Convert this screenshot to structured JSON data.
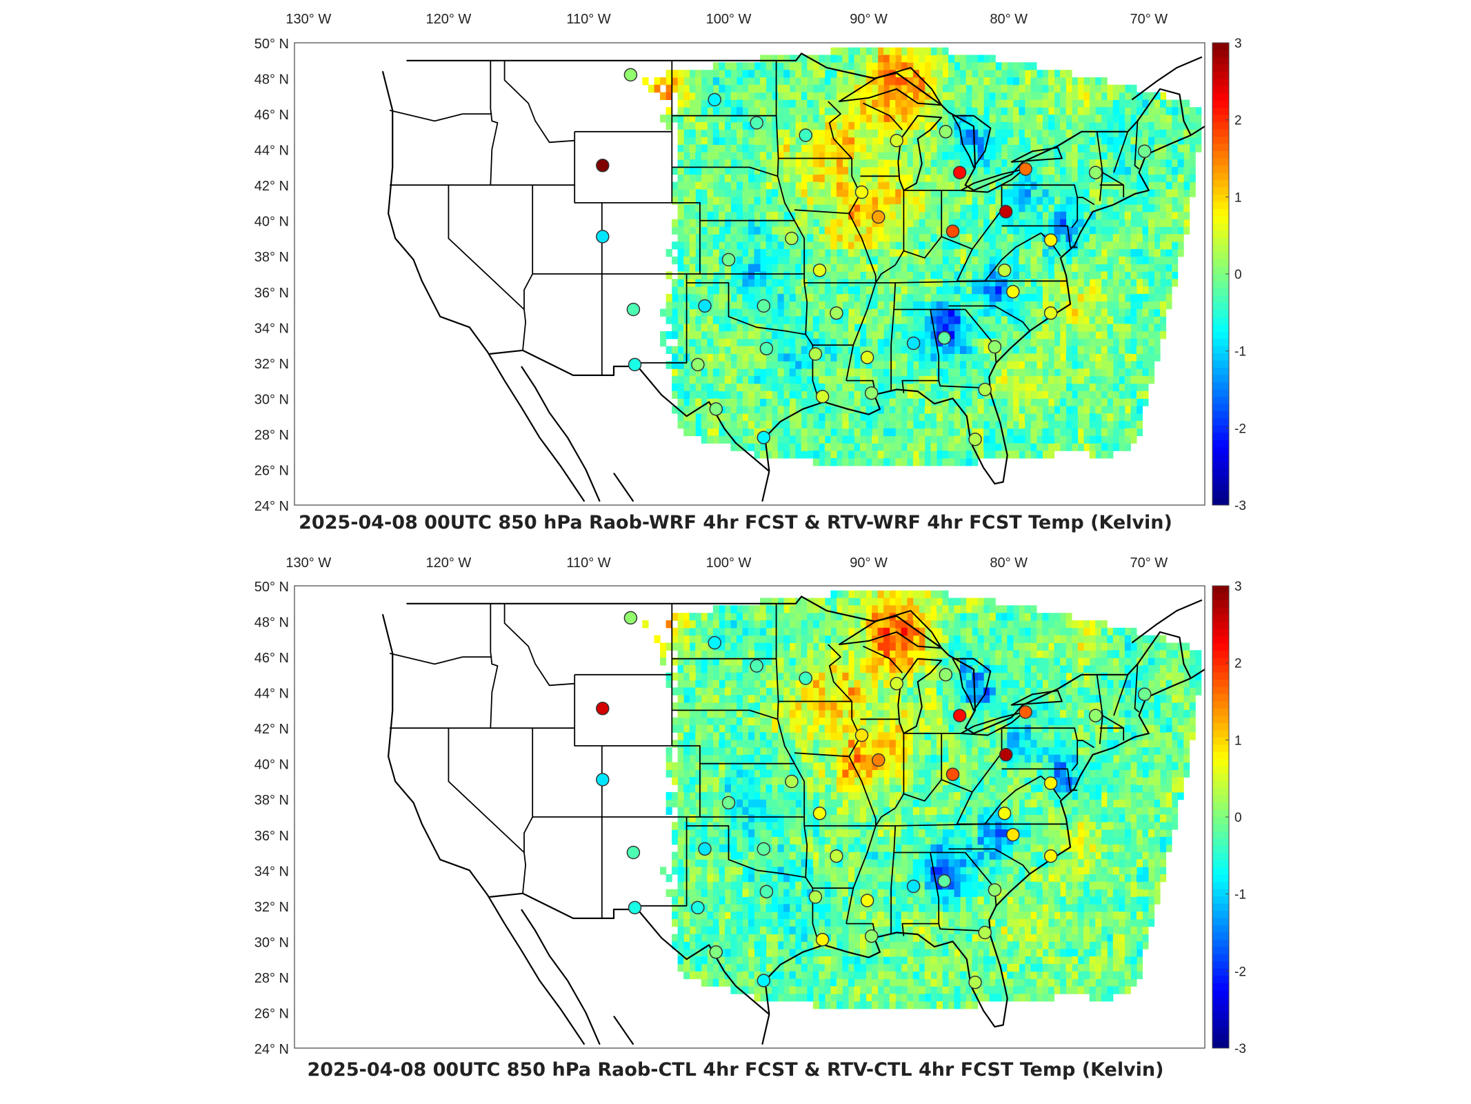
{
  "panels": [
    {
      "title": "2025-04-08 00UTC 850 hPa Raob-WRF 4hr FCST & RTV-WRF 4hr FCST Temp (Kelvin)",
      "stations_variant": "wrf"
    },
    {
      "title": "2025-04-08 00UTC 850 hPa Raob-CTL 4hr FCST & RTV-CTL 4hr FCST Temp (Kelvin)",
      "stations_variant": "ctl"
    }
  ],
  "map": {
    "lon_range": [
      -131,
      -66
    ],
    "lat_range": [
      24,
      50
    ],
    "lon_ticks": [
      {
        "value": -130,
        "label": "130° W"
      },
      {
        "value": -120,
        "label": "120° W"
      },
      {
        "value": -110,
        "label": "110° W"
      },
      {
        "value": -100,
        "label": "100° W"
      },
      {
        "value": -90,
        "label": "90° W"
      },
      {
        "value": -80,
        "label": "80° W"
      },
      {
        "value": -70,
        "label": "70° W"
      }
    ],
    "lat_ticks": [
      {
        "value": 50,
        "label": "50° N"
      },
      {
        "value": 48,
        "label": "48° N"
      },
      {
        "value": 46,
        "label": "46° N"
      },
      {
        "value": 44,
        "label": "44° N"
      },
      {
        "value": 42,
        "label": "42° N"
      },
      {
        "value": 40,
        "label": "40° N"
      },
      {
        "value": 38,
        "label": "38° N"
      },
      {
        "value": 36,
        "label": "36° N"
      },
      {
        "value": 34,
        "label": "34° N"
      },
      {
        "value": 32,
        "label": "32° N"
      },
      {
        "value": 30,
        "label": "30° N"
      },
      {
        "value": 28,
        "label": "28° N"
      },
      {
        "value": 26,
        "label": "26° N"
      },
      {
        "value": 24,
        "label": "24° N"
      }
    ]
  },
  "colorbar": {
    "min": -3,
    "max": 3,
    "ticks": [
      {
        "value": 3,
        "label": "3"
      },
      {
        "value": 2,
        "label": "2"
      },
      {
        "value": 1,
        "label": "1"
      },
      {
        "value": 0,
        "label": "0"
      },
      {
        "value": -1,
        "label": "-1"
      },
      {
        "value": -2,
        "label": "-2"
      },
      {
        "value": -3,
        "label": "-3"
      }
    ],
    "colormap": "jet"
  },
  "stations": [
    {
      "lon": -107.0,
      "lat": 48.2,
      "wrf": 0.1,
      "ctl": 0.1
    },
    {
      "lon": -101.0,
      "lat": 46.8,
      "wrf": -0.8,
      "ctl": -0.8
    },
    {
      "lon": -98.0,
      "lat": 45.5,
      "wrf": -0.3,
      "ctl": -0.3
    },
    {
      "lon": -94.5,
      "lat": 44.8,
      "wrf": -0.4,
      "ctl": -0.4
    },
    {
      "lon": -88.0,
      "lat": 44.5,
      "wrf": 0.5,
      "ctl": 0.5
    },
    {
      "lon": -84.5,
      "lat": 45.0,
      "wrf": 0.1,
      "ctl": 0.1
    },
    {
      "lon": -109.0,
      "lat": 43.1,
      "wrf": 3.0,
      "ctl": 2.5
    },
    {
      "lon": -83.5,
      "lat": 42.7,
      "wrf": 2.2,
      "ctl": 2.2
    },
    {
      "lon": -78.8,
      "lat": 42.9,
      "wrf": 1.6,
      "ctl": 1.7
    },
    {
      "lon": -73.8,
      "lat": 42.7,
      "wrf": 0.1,
      "ctl": 0.1
    },
    {
      "lon": -70.3,
      "lat": 43.9,
      "wrf": -0.1,
      "ctl": -0.1
    },
    {
      "lon": -90.5,
      "lat": 41.6,
      "wrf": 0.7,
      "ctl": 0.9
    },
    {
      "lon": -89.3,
      "lat": 40.2,
      "wrf": 1.3,
      "ctl": 1.5
    },
    {
      "lon": -84.0,
      "lat": 39.4,
      "wrf": 1.8,
      "ctl": 1.8
    },
    {
      "lon": -80.2,
      "lat": 40.5,
      "wrf": 2.6,
      "ctl": 2.7
    },
    {
      "lon": -77.0,
      "lat": 38.9,
      "wrf": 0.8,
      "ctl": 0.8
    },
    {
      "lon": -109.0,
      "lat": 39.1,
      "wrf": -0.9,
      "ctl": -0.9
    },
    {
      "lon": -95.5,
      "lat": 39.0,
      "wrf": 0.3,
      "ctl": 0.3
    },
    {
      "lon": -100.0,
      "lat": 37.8,
      "wrf": -0.1,
      "ctl": -0.1
    },
    {
      "lon": -93.5,
      "lat": 37.2,
      "wrf": 0.6,
      "ctl": 0.7
    },
    {
      "lon": -80.3,
      "lat": 37.2,
      "wrf": 0.4,
      "ctl": 0.7
    },
    {
      "lon": -79.7,
      "lat": 36.0,
      "wrf": 0.7,
      "ctl": 0.9
    },
    {
      "lon": -106.8,
      "lat": 35.0,
      "wrf": -0.3,
      "ctl": -0.3
    },
    {
      "lon": -101.7,
      "lat": 35.2,
      "wrf": -0.9,
      "ctl": -0.9
    },
    {
      "lon": -97.5,
      "lat": 35.2,
      "wrf": -0.2,
      "ctl": -0.2
    },
    {
      "lon": -92.3,
      "lat": 34.8,
      "wrf": 0.2,
      "ctl": 0.4
    },
    {
      "lon": -77.0,
      "lat": 34.8,
      "wrf": 0.6,
      "ctl": 0.8
    },
    {
      "lon": -97.3,
      "lat": 32.8,
      "wrf": -0.3,
      "ctl": -0.3
    },
    {
      "lon": -93.8,
      "lat": 32.5,
      "wrf": 0.3,
      "ctl": 0.3
    },
    {
      "lon": -90.1,
      "lat": 32.3,
      "wrf": 0.6,
      "ctl": 0.7
    },
    {
      "lon": -86.8,
      "lat": 33.1,
      "wrf": -0.9,
      "ctl": -0.9
    },
    {
      "lon": -84.6,
      "lat": 33.4,
      "wrf": -0.2,
      "ctl": -0.2
    },
    {
      "lon": -81.0,
      "lat": 32.9,
      "wrf": 0.1,
      "ctl": 0.1
    },
    {
      "lon": -106.7,
      "lat": 31.9,
      "wrf": -0.6,
      "ctl": -0.6
    },
    {
      "lon": -102.2,
      "lat": 31.9,
      "wrf": 0.1,
      "ctl": -0.6
    },
    {
      "lon": -93.3,
      "lat": 30.1,
      "wrf": 0.5,
      "ctl": 0.8
    },
    {
      "lon": -89.8,
      "lat": 30.3,
      "wrf": 0.1,
      "ctl": 0.1
    },
    {
      "lon": -81.7,
      "lat": 30.5,
      "wrf": 0.3,
      "ctl": 0.3
    },
    {
      "lon": -100.9,
      "lat": 29.4,
      "wrf": 0.0,
      "ctl": 0.0
    },
    {
      "lon": -97.5,
      "lat": 27.8,
      "wrf": -0.8,
      "ctl": -0.8
    },
    {
      "lon": -82.4,
      "lat": 27.7,
      "wrf": 0.3,
      "ctl": 0.3
    }
  ]
}
